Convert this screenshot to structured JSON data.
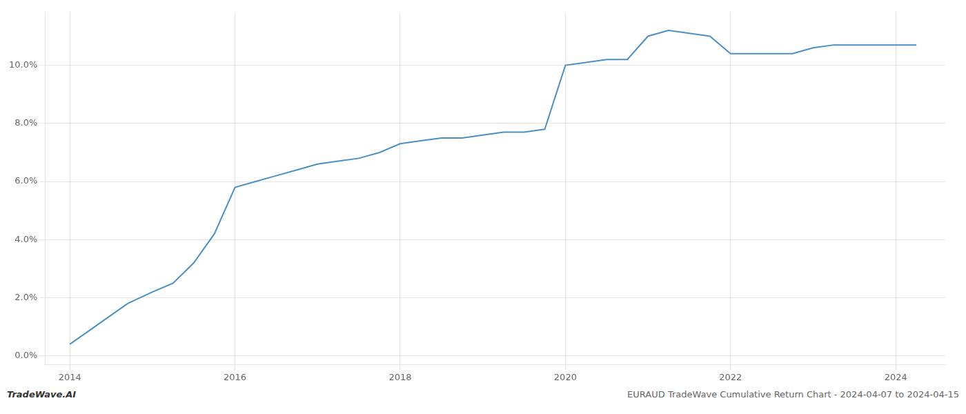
{
  "chart_data": {
    "type": "line",
    "x": [
      2014.0,
      2014.3,
      2014.7,
      2015.0,
      2015.25,
      2015.5,
      2015.75,
      2016.0,
      2016.25,
      2016.5,
      2016.75,
      2017.0,
      2017.25,
      2017.5,
      2017.75,
      2018.0,
      2018.25,
      2018.5,
      2018.75,
      2019.0,
      2019.25,
      2019.5,
      2019.75,
      2020.0,
      2020.25,
      2020.5,
      2020.75,
      2021.0,
      2021.25,
      2021.5,
      2021.75,
      2022.0,
      2022.25,
      2022.5,
      2022.75,
      2023.0,
      2023.25,
      2023.5,
      2023.75,
      2024.0,
      2024.25
    ],
    "values": [
      0.004,
      0.01,
      0.018,
      0.022,
      0.025,
      0.032,
      0.042,
      0.058,
      0.06,
      0.062,
      0.064,
      0.066,
      0.067,
      0.068,
      0.07,
      0.073,
      0.074,
      0.075,
      0.075,
      0.076,
      0.077,
      0.077,
      0.078,
      0.1,
      0.101,
      0.102,
      0.102,
      0.11,
      0.112,
      0.111,
      0.11,
      0.104,
      0.104,
      0.104,
      0.104,
      0.106,
      0.107,
      0.107,
      0.107,
      0.107,
      0.107
    ],
    "color": "#4a90c4",
    "xlim": [
      2013.7,
      2024.6
    ],
    "ylim": [
      -0.003,
      0.118
    ],
    "xticks": [
      2014,
      2016,
      2018,
      2020,
      2022,
      2024
    ],
    "yticks": [
      {
        "value": 0.0,
        "label": "0.0%"
      },
      {
        "value": 0.02,
        "label": "2.0%"
      },
      {
        "value": 0.04,
        "label": "4.0%"
      },
      {
        "value": 0.06,
        "label": "6.0%"
      },
      {
        "value": 0.08,
        "label": "8.0%"
      },
      {
        "value": 0.1,
        "label": "10.0%"
      }
    ],
    "grid": true,
    "annotations": [
      "TradeWave.AI",
      "EURAUD TradeWave Cumulative Return Chart - 2024-04-07 to 2024-04-15"
    ]
  }
}
